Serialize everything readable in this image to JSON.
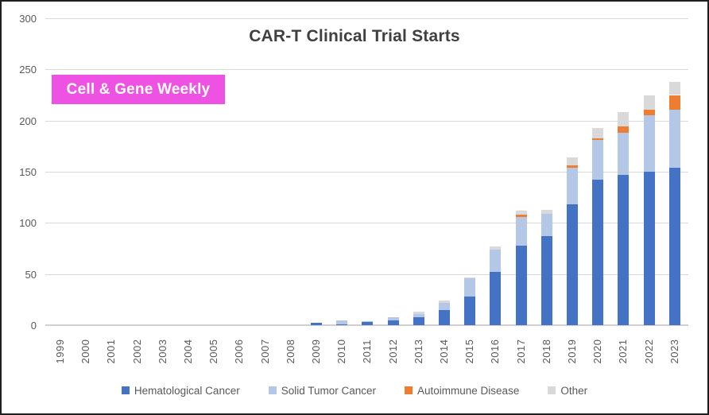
{
  "badge": {
    "text": "Cell & Gene Weekly",
    "background_color": "#EE52E2",
    "text_color": "#FFFFFF"
  },
  "chart_data": {
    "type": "bar",
    "stacked": true,
    "title": "CAR-T Clinical Trial Starts",
    "xlabel": "",
    "ylabel": "",
    "categories": [
      "1999",
      "2000",
      "2001",
      "2002",
      "2003",
      "2004",
      "2005",
      "2006",
      "2007",
      "2008",
      "2009",
      "2010",
      "2011",
      "2012",
      "2013",
      "2014",
      "2015",
      "2016",
      "2017",
      "2018",
      "2019",
      "2020",
      "2021",
      "2022",
      "2023"
    ],
    "series": [
      {
        "name": "Hematological Cancer",
        "color": "#4472C4",
        "values": [
          0,
          0,
          0,
          0,
          0,
          0,
          0,
          0,
          0,
          0,
          2,
          1,
          3,
          5,
          8,
          15,
          28,
          52,
          78,
          87,
          118,
          142,
          147,
          150,
          154
        ]
      },
      {
        "name": "Solid Tumor Cancer",
        "color": "#B4C7E7",
        "values": [
          0,
          0,
          0,
          0,
          0,
          0,
          0,
          0,
          0,
          0,
          0,
          4,
          1,
          3,
          3,
          7,
          18,
          22,
          28,
          22,
          36,
          39,
          41,
          55,
          57
        ]
      },
      {
        "name": "Autoimmune Disease",
        "color": "#ED7D31",
        "values": [
          0,
          0,
          0,
          0,
          0,
          0,
          0,
          0,
          0,
          0,
          0,
          0,
          0,
          0,
          0,
          0,
          0,
          0,
          2,
          0,
          2,
          2,
          6,
          6,
          14
        ]
      },
      {
        "name": "Other",
        "color": "#D9D9D9",
        "values": [
          0,
          0,
          0,
          0,
          0,
          0,
          0,
          0,
          0,
          0,
          0,
          0,
          0,
          0,
          2,
          2,
          1,
          3,
          4,
          4,
          8,
          10,
          14,
          14,
          13
        ]
      }
    ],
    "totals": [
      0,
      0,
      0,
      0,
      0,
      0,
      0,
      0,
      0,
      0,
      2,
      5,
      4,
      8,
      13,
      24,
      47,
      77,
      112,
      113,
      164,
      193,
      208,
      225,
      238
    ],
    "ylim": [
      0,
      300
    ],
    "yticks": [
      0,
      50,
      100,
      150,
      200,
      250,
      300
    ],
    "grid": true,
    "gridline_color": "#D9D9D9",
    "axis_label_color": "#595959",
    "legend_position": "bottom"
  }
}
